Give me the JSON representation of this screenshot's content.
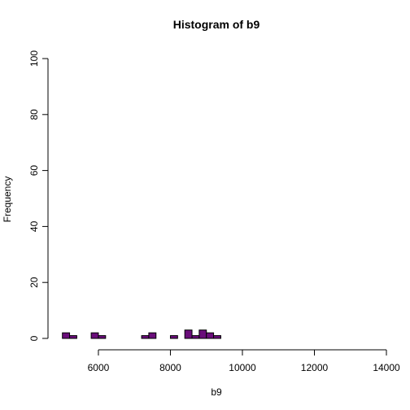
{
  "chart_data": {
    "type": "bar",
    "title": "Histogram of b9",
    "xlabel": "b9",
    "ylabel": "Frequency",
    "xlim": [
      4600,
      14000
    ],
    "ylim": [
      0,
      100
    ],
    "xticks": [
      6000,
      8000,
      10000,
      12000,
      14000
    ],
    "yticks": [
      0,
      20,
      40,
      60,
      80,
      100
    ],
    "bin_width": 200,
    "bins": [
      {
        "start": 5000,
        "end": 5200,
        "count": 2
      },
      {
        "start": 5200,
        "end": 5400,
        "count": 1
      },
      {
        "start": 5400,
        "end": 5600,
        "count": 0
      },
      {
        "start": 5600,
        "end": 5800,
        "count": 0
      },
      {
        "start": 5800,
        "end": 6000,
        "count": 2
      },
      {
        "start": 6000,
        "end": 6200,
        "count": 1
      },
      {
        "start": 6200,
        "end": 6400,
        "count": 0
      },
      {
        "start": 6400,
        "end": 6600,
        "count": 0
      },
      {
        "start": 6600,
        "end": 6800,
        "count": 0
      },
      {
        "start": 6800,
        "end": 7000,
        "count": 0
      },
      {
        "start": 7000,
        "end": 7200,
        "count": 0
      },
      {
        "start": 7200,
        "end": 7400,
        "count": 1
      },
      {
        "start": 7400,
        "end": 7600,
        "count": 2
      },
      {
        "start": 7600,
        "end": 7800,
        "count": 0
      },
      {
        "start": 7800,
        "end": 8000,
        "count": 0
      },
      {
        "start": 8000,
        "end": 8200,
        "count": 1
      },
      {
        "start": 8200,
        "end": 8400,
        "count": 0
      },
      {
        "start": 8400,
        "end": 8600,
        "count": 3
      },
      {
        "start": 8600,
        "end": 8800,
        "count": 1
      },
      {
        "start": 8800,
        "end": 9000,
        "count": 3
      },
      {
        "start": 9000,
        "end": 9200,
        "count": 2
      },
      {
        "start": 9200,
        "end": 9400,
        "count": 1
      }
    ],
    "bar_color": "#6a0d7a",
    "grid": false,
    "legend": "none"
  }
}
